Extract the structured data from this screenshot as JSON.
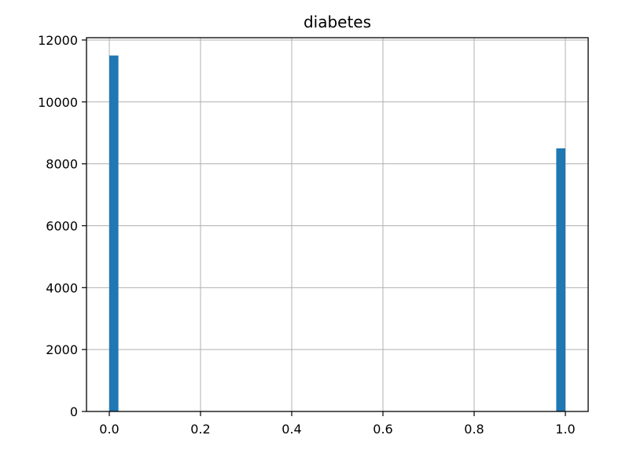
{
  "chart_data": {
    "type": "bar",
    "title": "diabetes",
    "xlabel": "",
    "ylabel": "",
    "x": [
      0,
      1
    ],
    "values": [
      11500,
      8500
    ],
    "bar_width": 0.02,
    "xlim": [
      -0.05,
      1.05
    ],
    "ylim": [
      0,
      12075
    ],
    "xticks": [
      0.0,
      0.2,
      0.4,
      0.6,
      0.8,
      1.0
    ],
    "xtick_labels": [
      "0.0",
      "0.2",
      "0.4",
      "0.6",
      "0.8",
      "1.0"
    ],
    "yticks": [
      0,
      2000,
      4000,
      6000,
      8000,
      10000,
      12000
    ],
    "ytick_labels": [
      "0",
      "2000",
      "4000",
      "6000",
      "8000",
      "10000",
      "12000"
    ],
    "grid": true,
    "bar_color": "#1f77b4"
  }
}
